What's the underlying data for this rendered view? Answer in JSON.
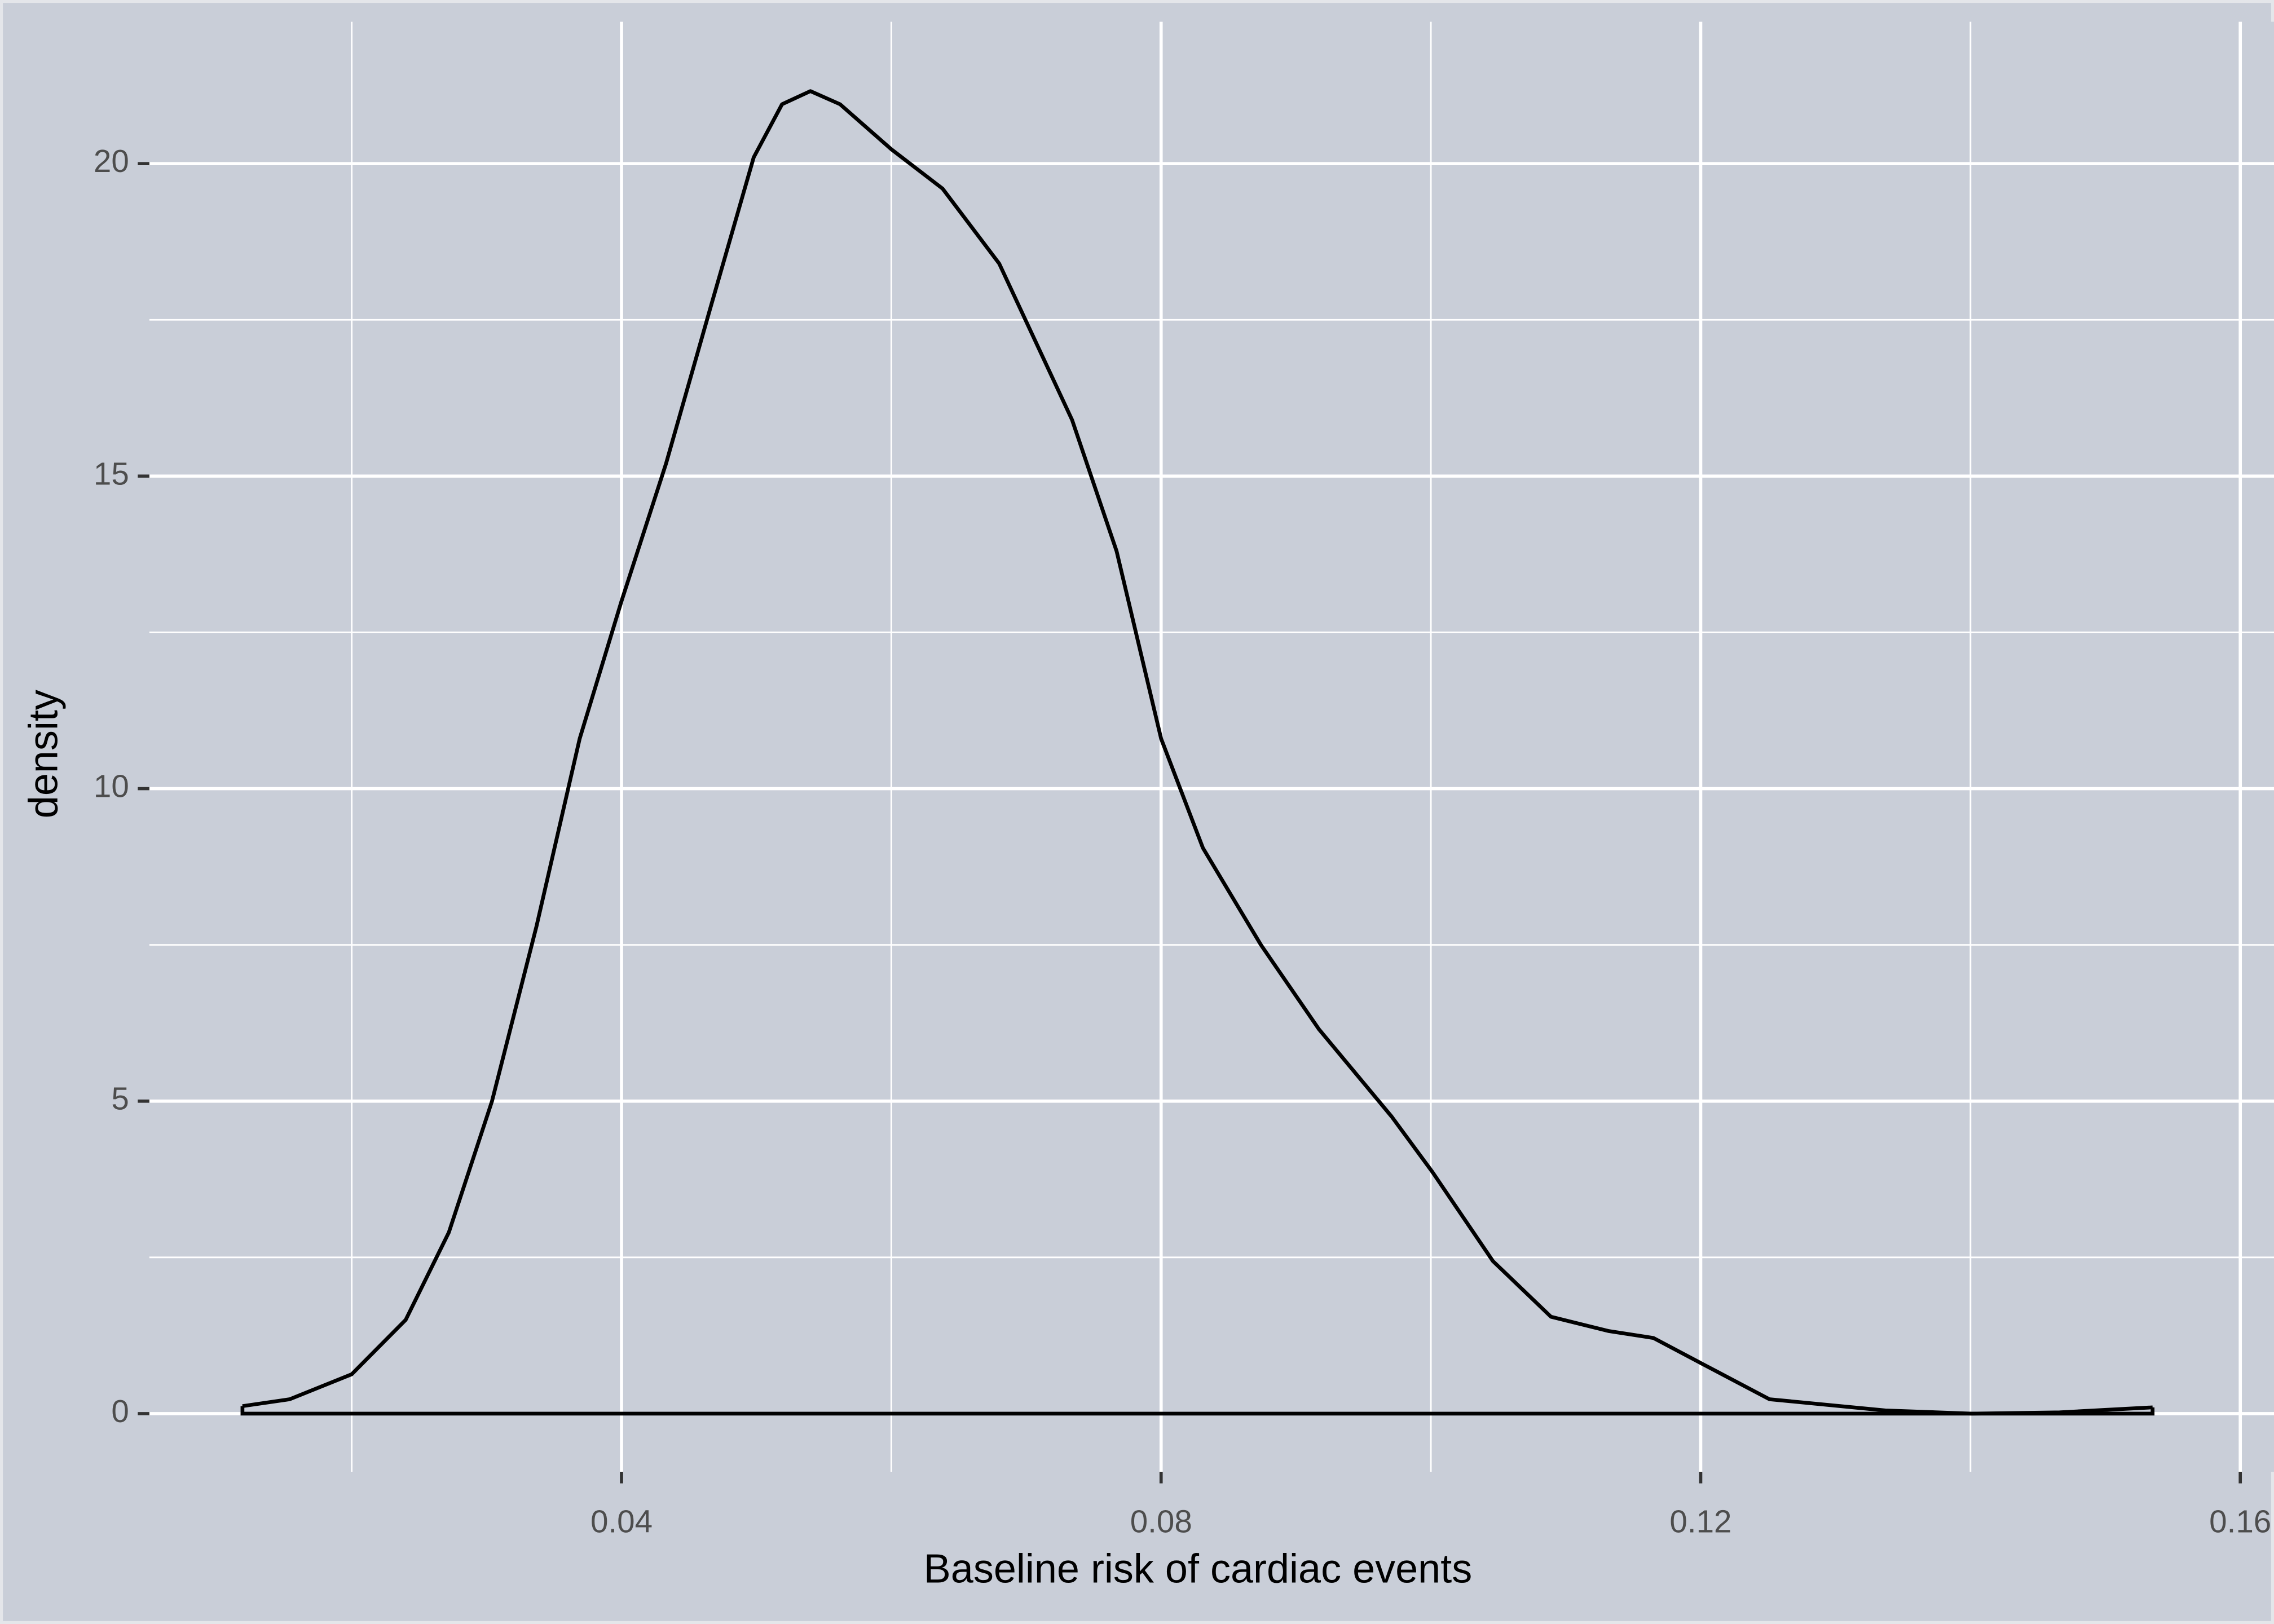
{
  "chart_data": {
    "type": "density",
    "x_label": "Baseline risk of cardiac events",
    "y_label": "density",
    "x": [
      0.0119,
      0.0154,
      0.02,
      0.024,
      0.0272,
      0.0304,
      0.0337,
      0.0369,
      0.04,
      0.0433,
      0.0466,
      0.0498,
      0.0519,
      0.054,
      0.0562,
      0.06,
      0.0638,
      0.068,
      0.0734,
      0.0767,
      0.08,
      0.0831,
      0.0874,
      0.0917,
      0.0971,
      0.1001,
      0.1046,
      0.1089,
      0.1132,
      0.1165,
      0.12,
      0.1251,
      0.1337,
      0.1401,
      0.1466,
      0.1535
    ],
    "values": [
      0.12,
      0.23,
      0.63,
      1.5,
      2.9,
      5.0,
      7.8,
      10.8,
      13.0,
      15.2,
      17.7,
      20.1,
      20.95,
      21.16,
      20.95,
      20.23,
      19.6,
      18.4,
      15.9,
      13.8,
      10.8,
      9.05,
      7.5,
      6.15,
      4.75,
      3.87,
      2.44,
      1.55,
      1.32,
      1.21,
      0.81,
      0.23,
      0.05,
      0.0,
      0.02,
      0.1
    ],
    "color": "#000000",
    "xlim": [
      0.005,
      0.1625
    ],
    "ylim": [
      -0.93,
      22.27
    ],
    "xticks": [
      0.04,
      0.08,
      0.12,
      0.16
    ],
    "yticks": [
      0,
      5,
      10,
      15,
      20
    ],
    "x_minor_grid": [
      0.02,
      0.06,
      0.1,
      0.14
    ],
    "y_minor_grid": [
      2.5,
      7.5,
      12.5,
      17.5
    ],
    "grid": true,
    "background": "#c9ced8"
  }
}
